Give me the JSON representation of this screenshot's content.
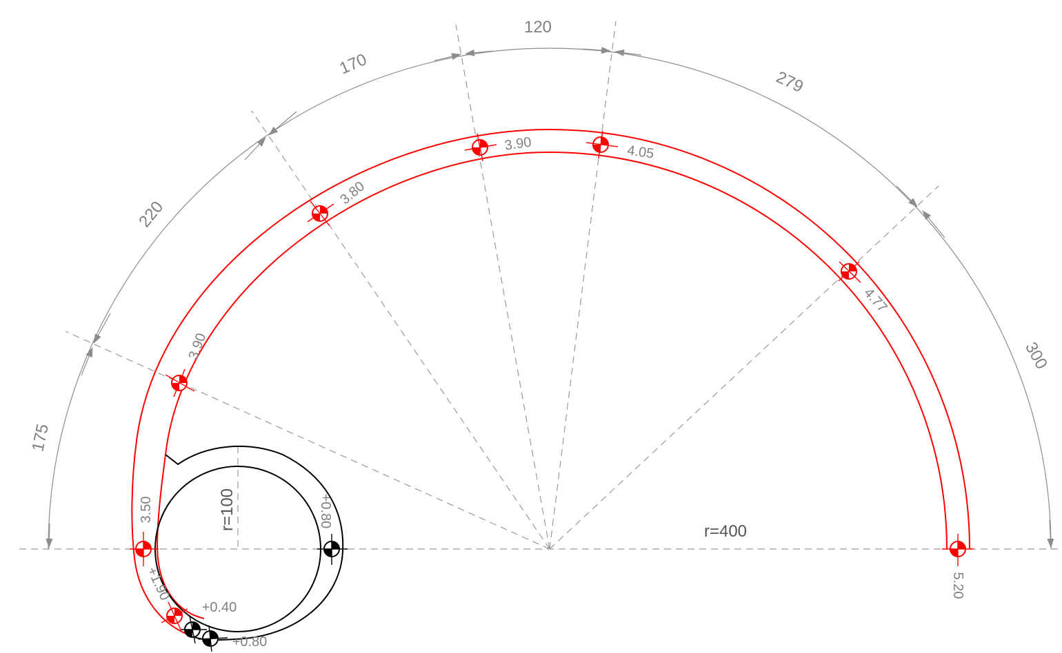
{
  "colors": {
    "wall": "#ff0000",
    "core": "#000000",
    "dimension": "#8c8c8c",
    "text": "#808080"
  },
  "dimensions": [
    {
      "id": "dim-175",
      "label": "175"
    },
    {
      "id": "dim-220",
      "label": "220"
    },
    {
      "id": "dim-170",
      "label": "170"
    },
    {
      "id": "dim-120",
      "label": "120"
    },
    {
      "id": "dim-279",
      "label": "279"
    },
    {
      "id": "dim-300",
      "label": "300"
    }
  ],
  "radii": {
    "outer": "r=400",
    "inner": "r=100"
  },
  "elevations_red": [
    {
      "id": "e-350",
      "label": "3.50"
    },
    {
      "id": "e-390a",
      "label": "3.90"
    },
    {
      "id": "e-380",
      "label": "3.80"
    },
    {
      "id": "e-390b",
      "label": "3.90"
    },
    {
      "id": "e-405",
      "label": "4.05"
    },
    {
      "id": "e-477",
      "label": "4.77"
    },
    {
      "id": "e-520",
      "label": "5.20"
    },
    {
      "id": "e-190",
      "label": "+1.90"
    }
  ],
  "elevations_black": [
    {
      "id": "b-080a",
      "label": "+0.80"
    },
    {
      "id": "b-040",
      "label": "+0.40"
    },
    {
      "id": "b-080b",
      "label": "+0.80"
    }
  ]
}
